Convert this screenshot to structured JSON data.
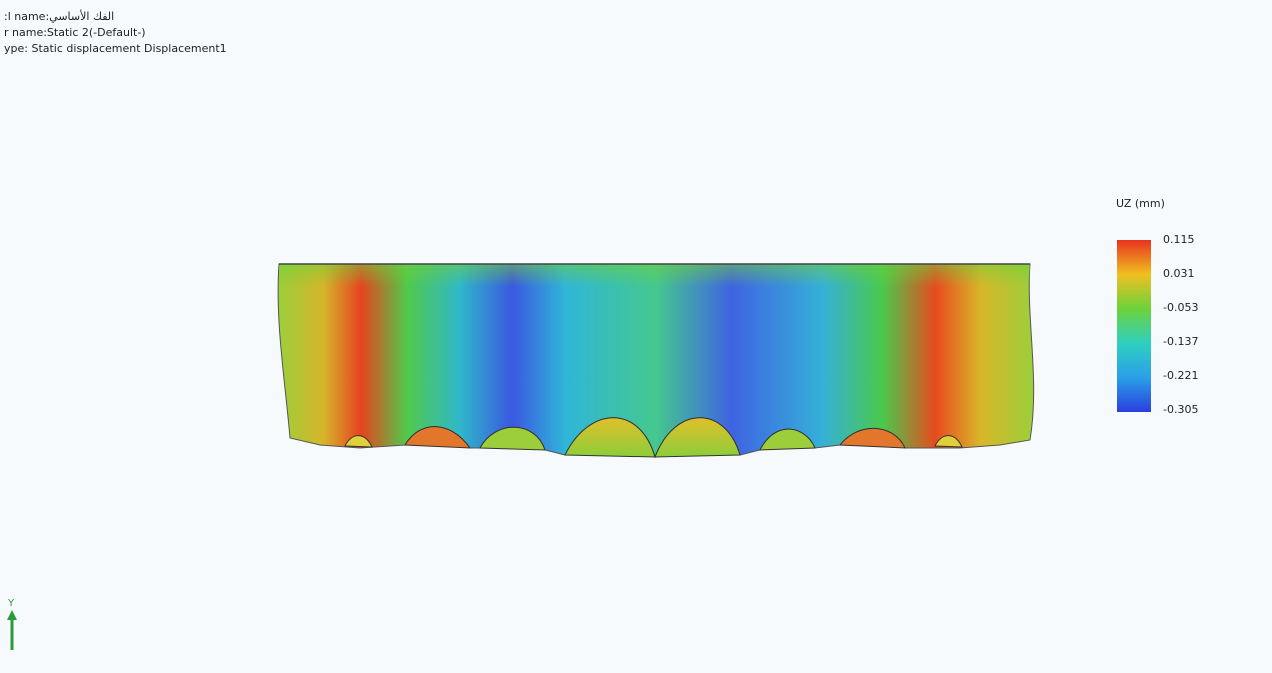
{
  "header": {
    "lines": [
      ":l name:الفك الأساسي",
      "r name:Static 2(-Default-)",
      "ype: Static displacement Displacement1"
    ]
  },
  "legend": {
    "title": "UZ (mm)",
    "ticks": [
      "0.115",
      "0.031",
      "-0.053",
      "-0.137",
      "-0.221",
      "-0.305"
    ]
  },
  "triad": {
    "axis": "Y"
  }
}
